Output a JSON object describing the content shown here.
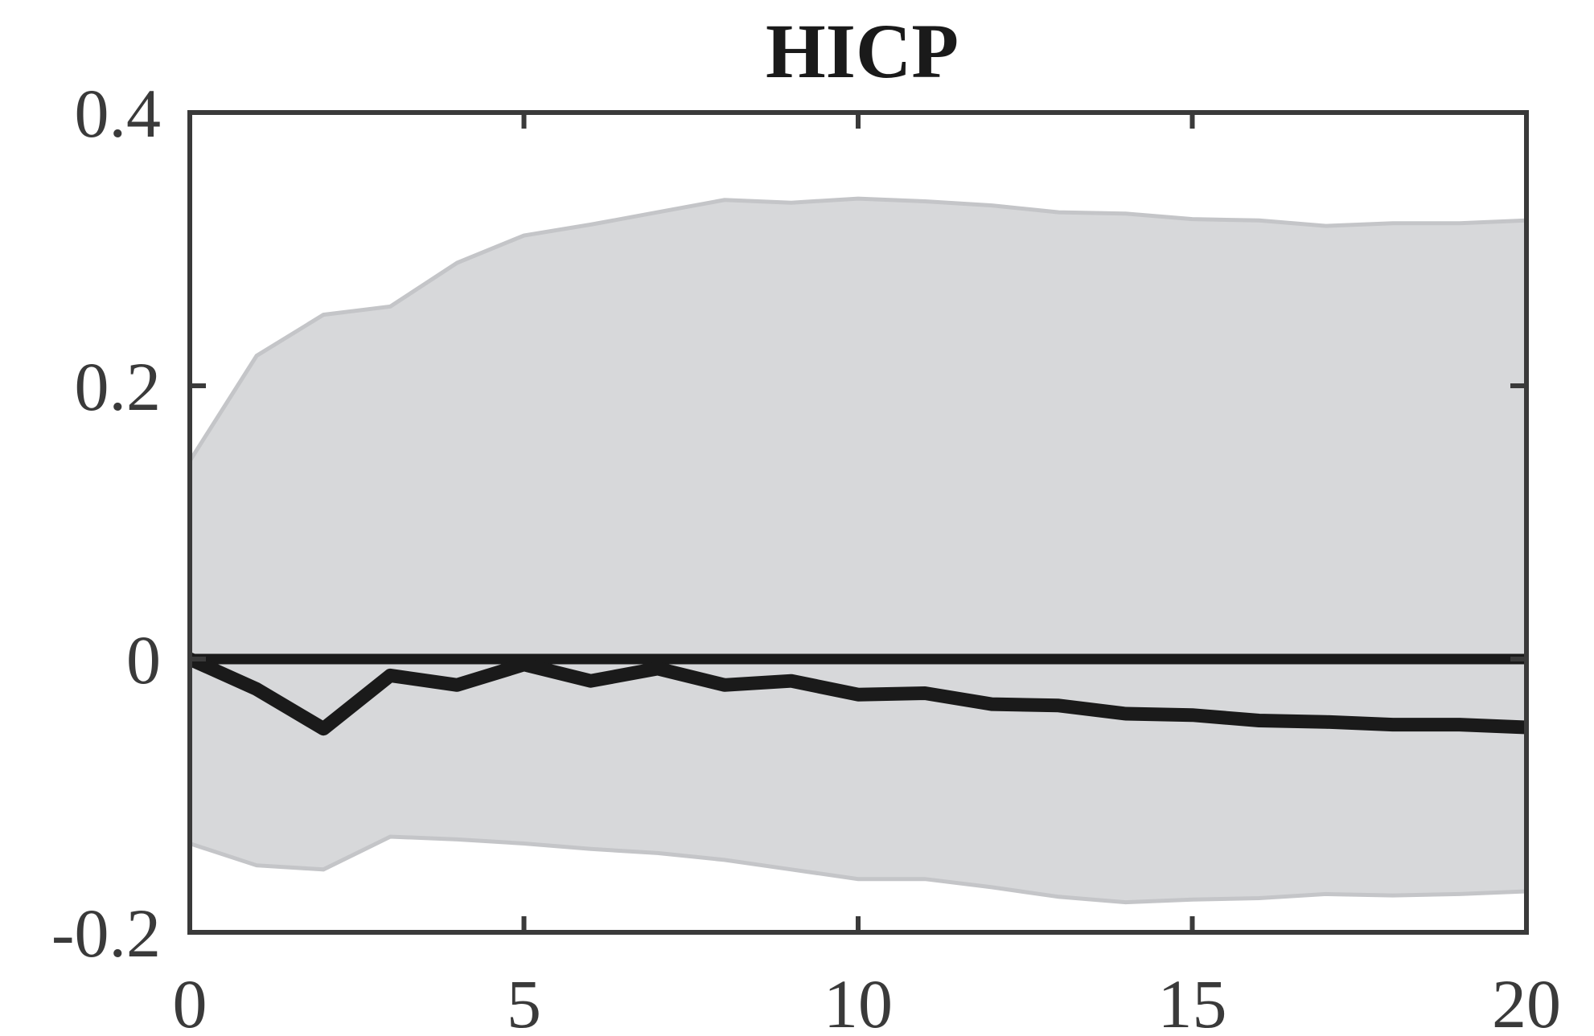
{
  "chart_data": {
    "type": "area",
    "title": "HICP",
    "xlabel": "",
    "ylabel": "",
    "xlim": [
      0,
      20
    ],
    "ylim": [
      -0.2,
      0.4
    ],
    "xticks": [
      0,
      5,
      10,
      15,
      20
    ],
    "xtick_labels": [
      "0",
      "5",
      "10",
      "15",
      "20"
    ],
    "yticks": [
      -0.2,
      0,
      0.2,
      0.4
    ],
    "ytick_labels": [
      "-0.2",
      "0",
      "0.2",
      "0.4"
    ],
    "grid": false,
    "x": [
      0,
      1,
      2,
      3,
      4,
      5,
      6,
      7,
      8,
      9,
      10,
      11,
      12,
      13,
      14,
      15,
      16,
      17,
      18,
      19,
      20
    ],
    "series": [
      {
        "role": "median",
        "values": [
          0.0,
          -0.022,
          -0.051,
          -0.012,
          -0.019,
          -0.004,
          -0.016,
          -0.007,
          -0.019,
          -0.016,
          -0.026,
          -0.025,
          -0.033,
          -0.034,
          -0.04,
          -0.041,
          -0.045,
          -0.046,
          -0.048,
          -0.048,
          -0.05
        ]
      },
      {
        "role": "upper-band",
        "values": [
          0.145,
          0.222,
          0.252,
          0.258,
          0.29,
          0.31,
          0.318,
          0.327,
          0.336,
          0.334,
          0.337,
          0.335,
          0.332,
          0.327,
          0.326,
          0.322,
          0.321,
          0.317,
          0.319,
          0.319,
          0.321
        ]
      },
      {
        "role": "lower-band",
        "values": [
          -0.135,
          -0.151,
          -0.154,
          -0.13,
          -0.132,
          -0.135,
          -0.139,
          -0.142,
          -0.147,
          -0.154,
          -0.161,
          -0.161,
          -0.167,
          -0.174,
          -0.178,
          -0.176,
          -0.175,
          -0.172,
          -0.173,
          -0.172,
          -0.17
        ]
      }
    ],
    "zero_line": 0,
    "colors": {
      "band": "#d7d8da",
      "band_edge": "#c4c5c8",
      "median": "#1a1a1a",
      "zero_line": "#1a1a1a",
      "axes": "#3a3a3a"
    }
  }
}
